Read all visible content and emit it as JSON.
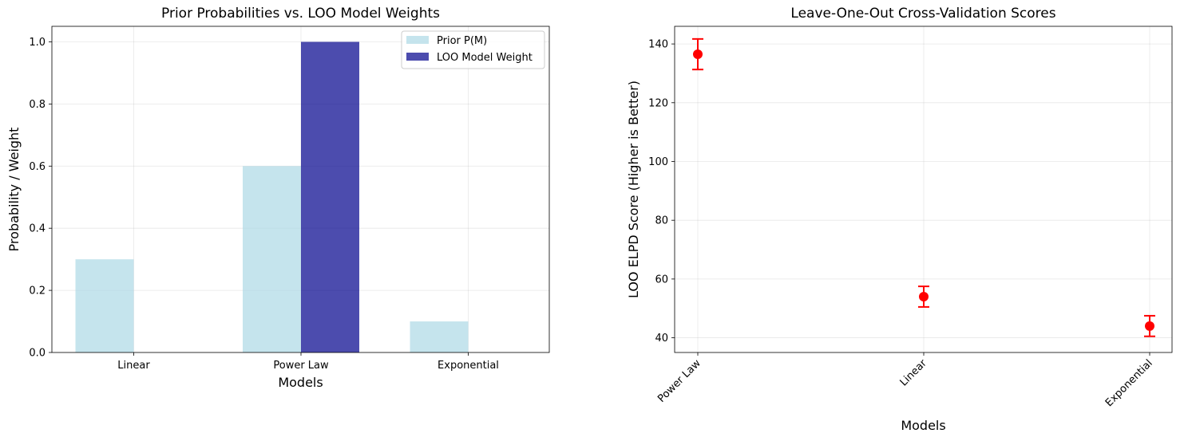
{
  "chart_data": [
    {
      "type": "bar",
      "title": "Prior Probabilities vs. LOO Model Weights",
      "xlabel": "Models",
      "ylabel": "Probability / Weight",
      "categories": [
        "Linear",
        "Power Law",
        "Exponential"
      ],
      "ylim": [
        0,
        1.05
      ],
      "yticks": [
        "0.0",
        "0.2",
        "0.4",
        "0.6",
        "0.8",
        "1.0"
      ],
      "ytick_values": [
        0,
        0.2,
        0.4,
        0.6,
        0.8,
        1.0
      ],
      "grid": true,
      "legend_position": "top-right",
      "series": [
        {
          "name": "Prior P(M)",
          "values": [
            0.3,
            0.6,
            0.1
          ],
          "color": "#add8e6"
        },
        {
          "name": "LOO Model Weight",
          "values": [
            0.0,
            1.0,
            0.0
          ],
          "color": "#00008b"
        }
      ]
    },
    {
      "type": "scatter",
      "title": "Leave-One-Out Cross-Validation Scores",
      "xlabel": "Models",
      "ylabel": "LOO ELPD Score (Higher is Better)",
      "categories": [
        "Power Law",
        "Linear",
        "Exponential"
      ],
      "ylim": [
        35,
        146
      ],
      "yticks": [
        "40",
        "60",
        "80",
        "100",
        "120",
        "140"
      ],
      "ytick_values": [
        40,
        60,
        80,
        100,
        120,
        140
      ],
      "grid": true,
      "series": [
        {
          "values": [
            136.5,
            54,
            44
          ],
          "errors": [
            5.2,
            3.5,
            3.5
          ],
          "color": "#ff0000"
        }
      ]
    }
  ]
}
